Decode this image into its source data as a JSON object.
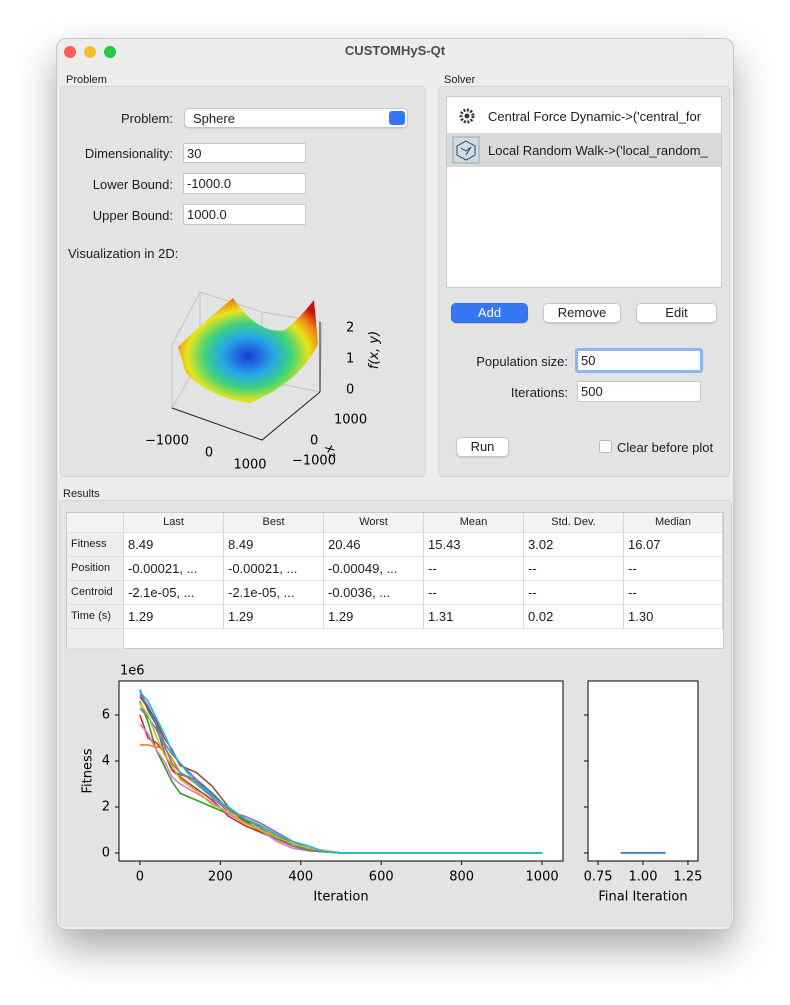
{
  "window": {
    "title": "CUSTOMHyS-Qt"
  },
  "problem": {
    "group_label": "Problem",
    "problem_label": "Problem:",
    "problem_value": "Sphere",
    "dimensionality_label": "Dimensionality:",
    "dimensionality": "30",
    "lower_bound_label": "Lower Bound:",
    "lower_bound": "-1000.0",
    "upper_bound_label": "Upper Bound:",
    "upper_bound": "1000.0",
    "visualization_label": "Visualization in 2D:",
    "surface_plot": {
      "z_label": "f(x, y)",
      "z_ticks": [
        "0",
        "1",
        "2"
      ],
      "x2_label": "x₂",
      "x2_ticks": [
        "−1000",
        "0",
        "1000"
      ],
      "x1_ticks": [
        "−1000",
        "0",
        "1000"
      ]
    }
  },
  "solver": {
    "group_label": "Solver",
    "items": [
      "Central Force Dynamic->('central_for",
      "Local Random Walk->('local_random_"
    ],
    "add_button": "Add",
    "remove_button": "Remove",
    "edit_button": "Edit",
    "population_label": "Population size:",
    "population": "50",
    "iterations_label": "Iterations:",
    "iterations": "500",
    "run_button": "Run",
    "clear_checkbox": "Clear before plot"
  },
  "results": {
    "group_label": "Results",
    "table": {
      "header": [
        "Last",
        "Best",
        "Worst",
        "Mean",
        "Std. Dev.",
        "Median"
      ],
      "rows": [
        [
          "Fitness",
          "8.49",
          "8.49",
          "20.46",
          "15.43",
          "3.02",
          "16.07"
        ],
        [
          "Position",
          "-0.00021, ...",
          "-0.00021, ...",
          "-0.00049, ...",
          "--",
          "--",
          "--"
        ],
        [
          "Centroid",
          "-2.1e-05, ...",
          "-2.1e-05, ...",
          "-0.0036, ...",
          "--",
          "--",
          "--"
        ],
        [
          "Time (s)",
          "1.29",
          "1.29",
          "1.29",
          "1.31",
          "0.02",
          "1.30"
        ]
      ]
    }
  },
  "chart_data": [
    {
      "type": "line",
      "x_label": "Iteration",
      "y_label": "Fitness",
      "y_offset_label": "1e6",
      "x": [
        0,
        20,
        40,
        60,
        80,
        100,
        140,
        180,
        220,
        260,
        300,
        340,
        380,
        420,
        460,
        500,
        1000
      ],
      "xlim": [
        -52,
        1052
      ],
      "ylim": [
        -0.35,
        7.48
      ],
      "xticks": [
        0,
        200,
        400,
        600,
        800,
        1000
      ],
      "yticks": [
        0,
        2,
        4,
        6
      ],
      "series": [
        {
          "color": "#1f77b4",
          "values": [
            7.1,
            6.2,
            5.6,
            4.4,
            3.6,
            3.4,
            3.2,
            2.6,
            1.9,
            1.5,
            1.1,
            0.7,
            0.3,
            0.2,
            0.05,
            0,
            0
          ]
        },
        {
          "color": "#ff7f0e",
          "values": [
            4.7,
            4.7,
            4.6,
            4.6,
            4.1,
            3.5,
            3.0,
            2.5,
            1.9,
            1.4,
            1.0,
            0.8,
            0.4,
            0.2,
            0.1,
            0,
            0
          ]
        },
        {
          "color": "#2ca02c",
          "values": [
            6.6,
            5.7,
            4.5,
            3.8,
            3.1,
            2.6,
            2.3,
            2.0,
            1.7,
            1.4,
            0.9,
            0.6,
            0.3,
            0.15,
            0.05,
            0,
            0
          ]
        },
        {
          "color": "#d62728",
          "values": [
            6.0,
            5.0,
            4.8,
            4.4,
            3.6,
            3.3,
            2.8,
            2.3,
            1.6,
            1.2,
            0.9,
            0.7,
            0.3,
            0.1,
            0.05,
            0,
            0
          ]
        },
        {
          "color": "#9467bd",
          "values": [
            6.9,
            6.4,
            5.7,
            4.8,
            4.3,
            3.9,
            3.2,
            2.4,
            1.8,
            1.6,
            1.3,
            0.9,
            0.5,
            0.2,
            0.05,
            0,
            0
          ]
        },
        {
          "color": "#8c564b",
          "values": [
            6.8,
            6.3,
            5.8,
            5.0,
            4.5,
            3.8,
            3.5,
            2.9,
            2.0,
            1.4,
            1.2,
            0.8,
            0.4,
            0.2,
            0.1,
            0,
            0
          ]
        },
        {
          "color": "#e377c2",
          "values": [
            5.6,
            5.2,
            4.5,
            4.0,
            3.3,
            3.0,
            2.6,
            2.2,
            1.7,
            1.3,
            1.0,
            0.5,
            0.2,
            0.1,
            0.05,
            0,
            0
          ]
        },
        {
          "color": "#7f7f7f",
          "values": [
            6.3,
            5.9,
            5.4,
            4.7,
            3.9,
            3.5,
            3.1,
            2.5,
            1.9,
            1.5,
            1.1,
            0.6,
            0.3,
            0.1,
            0.05,
            0,
            0
          ]
        },
        {
          "color": "#bcbd22",
          "values": [
            6.5,
            6.0,
            5.1,
            4.3,
            3.8,
            3.2,
            2.7,
            2.1,
            1.8,
            1.3,
            1.0,
            0.7,
            0.4,
            0.2,
            0.1,
            0,
            0
          ]
        },
        {
          "color": "#17becf",
          "values": [
            7.0,
            6.6,
            5.9,
            5.2,
            4.4,
            3.9,
            3.0,
            2.4,
            2.0,
            1.5,
            1.2,
            0.8,
            0.5,
            0.3,
            0.05,
            0,
            0
          ]
        }
      ]
    },
    {
      "type": "line",
      "x_label": "Final Iteration",
      "x": [
        0.875,
        1.125
      ],
      "xlim": [
        0.694,
        1.306
      ],
      "ylim": [
        -0.35,
        7.48
      ],
      "xticks": [
        {
          "value": 0.75,
          "label": "0.75"
        },
        {
          "value": 1.0,
          "label": "1.00"
        },
        {
          "value": 1.25,
          "label": "1.25"
        }
      ],
      "yticks": [
        0,
        2,
        4,
        6
      ],
      "ytick_labels": false,
      "series": [
        {
          "color": "#1f77b4",
          "values": [
            0,
            0
          ]
        }
      ]
    }
  ]
}
